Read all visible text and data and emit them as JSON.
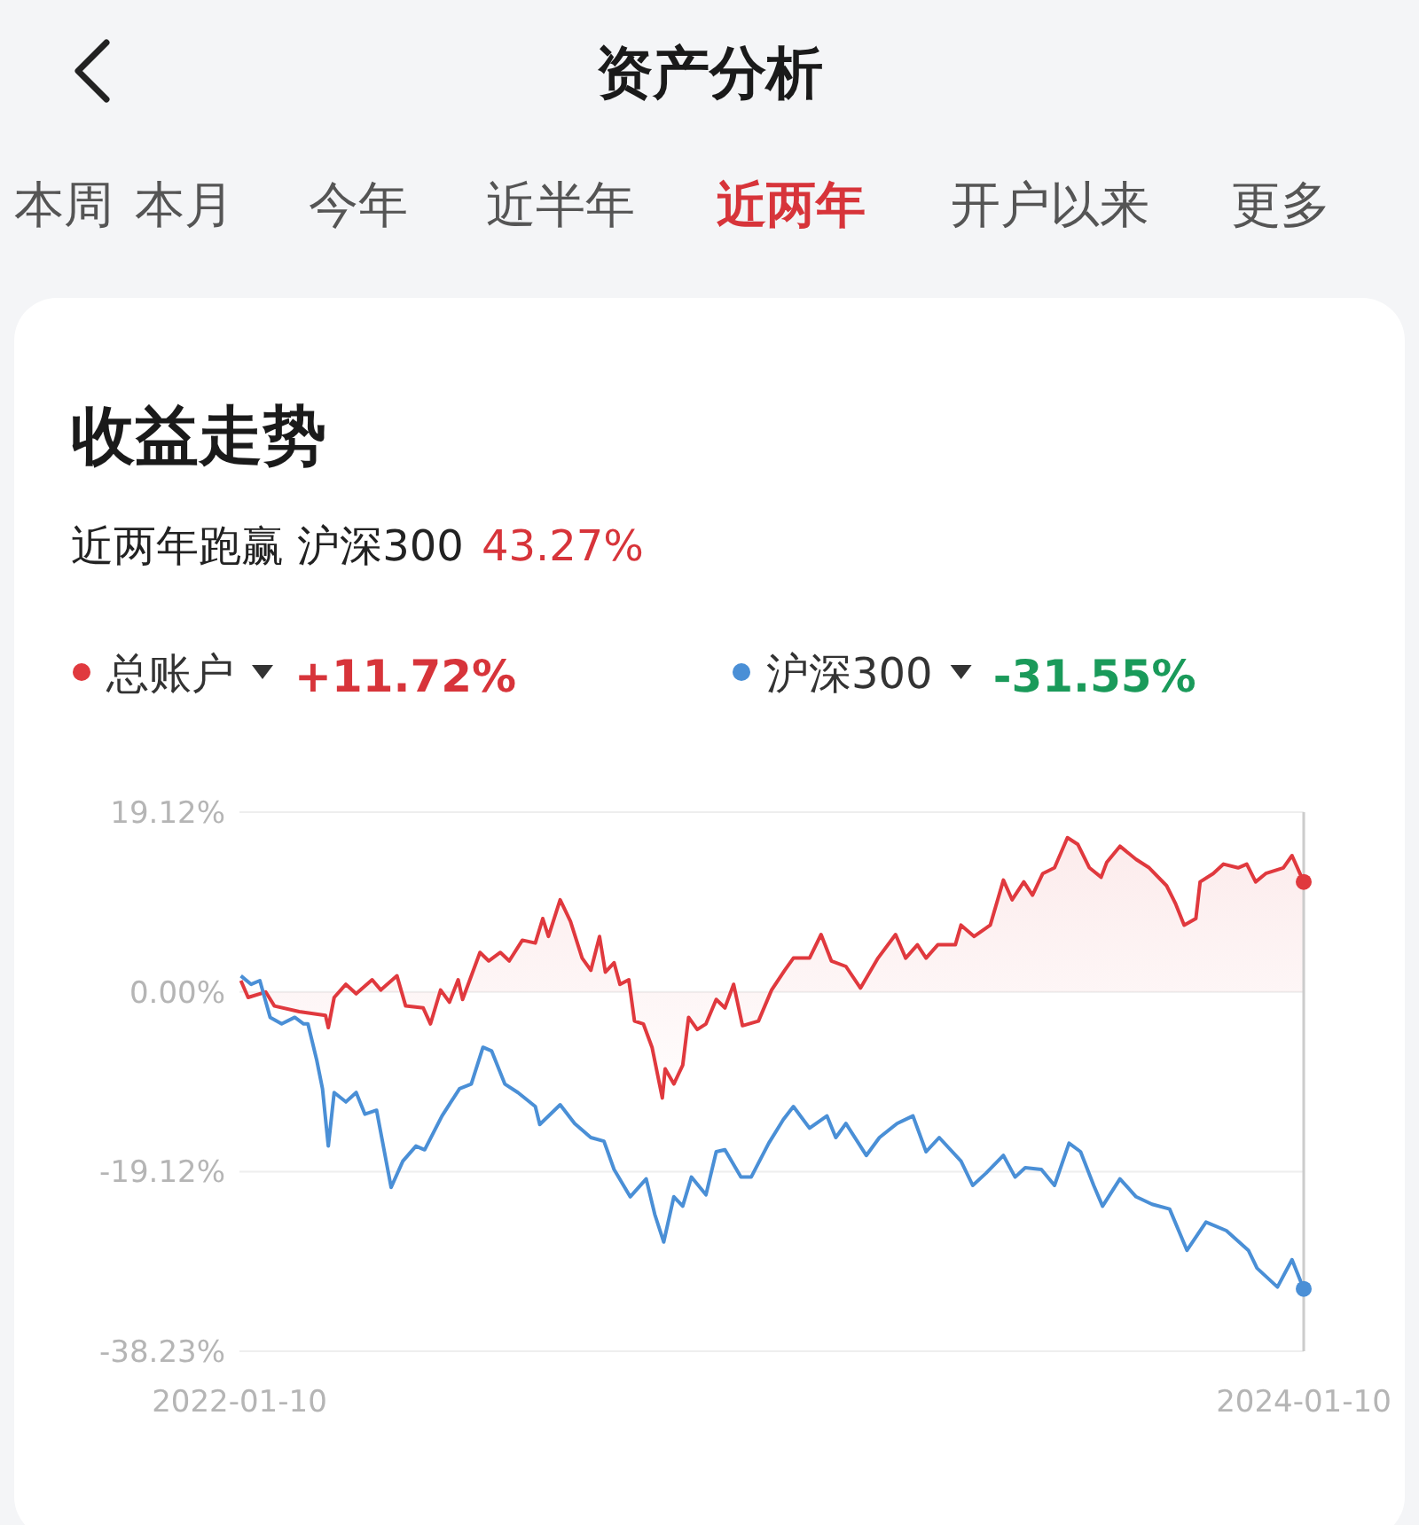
{
  "chart_data": {
    "type": "line",
    "title": "收益走势",
    "subtitle": "近两年跑赢 沪深300 43.27%",
    "annotations": [
      "资产分析",
      "本周",
      "本月",
      "今年",
      "近半年",
      "近两年",
      "开户以来",
      "更多",
      "+11.72%",
      "-31.55%"
    ],
    "xlim": [
      "2022-01-10",
      "2024-01-10"
    ],
    "xticks": [
      {
        "value": "2022-01-10",
        "label": "2022-01-10"
      },
      {
        "value": "2024-01-10",
        "label": "2024-01-10"
      }
    ],
    "ylim": [
      -38.23,
      19.12
    ],
    "yticks": [
      {
        "value": -38.23,
        "label": "-38.23%"
      },
      {
        "value": -19.12,
        "label": "-19.12%"
      },
      {
        "value": 0,
        "label": "0.00%"
      },
      {
        "value": 19.12,
        "label": "19.12%"
      }
    ],
    "grid": "y",
    "legend": "top left",
    "ref_lines": [
      {
        "axis": "x",
        "value": "2024-01-10",
        "label": null,
        "color": "#cccccc"
      }
    ],
    "series": [
      {
        "name": "总账户",
        "type": "area",
        "color": "#e0393e",
        "x": [
          "2022-01-11",
          "2022-01-16",
          "2022-01-28",
          "2022-02-03",
          "2022-02-20",
          "2022-03-10",
          "2022-03-12",
          "2022-03-16",
          "2022-03-24",
          "2022-03-31",
          "2022-04-11",
          "2022-04-17",
          "2022-04-28",
          "2022-05-04",
          "2022-05-16",
          "2022-05-21",
          "2022-05-28",
          "2022-06-03",
          "2022-06-09",
          "2022-06-12",
          "2022-06-24",
          "2022-06-30",
          "2022-07-08",
          "2022-07-14",
          "2022-07-23",
          "2022-08-01",
          "2022-08-06",
          "2022-08-10",
          "2022-08-18",
          "2022-08-25",
          "2022-09-02",
          "2022-09-08",
          "2022-09-14",
          "2022-09-18",
          "2022-09-24",
          "2022-09-28",
          "2022-10-04",
          "2022-10-08",
          "2022-10-14",
          "2022-10-20",
          "2022-10-27",
          "2022-10-29",
          "2022-11-04",
          "2022-11-10",
          "2022-11-14",
          "2022-11-20",
          "2022-11-26",
          "2022-12-03",
          "2022-12-09",
          "2022-12-15",
          "2022-12-21",
          "2023-01-01",
          "2023-01-10",
          "2023-01-19",
          "2023-01-25",
          "2023-02-05",
          "2023-02-13",
          "2023-02-20",
          "2023-03-02",
          "2023-03-12",
          "2023-03-24",
          "2023-04-05",
          "2023-04-12",
          "2023-04-20",
          "2023-04-26",
          "2023-05-04",
          "2023-05-16",
          "2023-05-20",
          "2023-05-29",
          "2023-06-09",
          "2023-06-18",
          "2023-06-24",
          "2023-07-02",
          "2023-07-08",
          "2023-07-15",
          "2023-07-23",
          "2023-08-01",
          "2023-08-08",
          "2023-08-16",
          "2023-08-24",
          "2023-08-28",
          "2023-09-06",
          "2023-09-17",
          "2023-09-26",
          "2023-10-08",
          "2023-10-14",
          "2023-10-20",
          "2023-10-28",
          "2023-10-31",
          "2023-11-09",
          "2023-11-16",
          "2023-11-26",
          "2023-12-02",
          "2023-12-08",
          "2023-12-15",
          "2023-12-27",
          "2024-01-02",
          "2024-01-10"
        ],
        "values": [
          1.2,
          -0.6,
          0,
          -1.5,
          -2.1,
          -2.5,
          -3.8,
          -0.6,
          0.8,
          -0.2,
          1.3,
          0.2,
          1.7,
          -1.5,
          -1.7,
          -3.4,
          0.2,
          -1.1,
          1.3,
          -0.8,
          4.2,
          3.3,
          4.2,
          3.3,
          5.5,
          5.2,
          7.8,
          5.9,
          9.8,
          7.5,
          3.6,
          2.3,
          5.9,
          2.1,
          3.1,
          0.8,
          1.3,
          -3.1,
          -3.4,
          -5.9,
          -11.3,
          -8.2,
          -9.8,
          -7.8,
          -2.7,
          -4.0,
          -3.4,
          -0.8,
          -1.7,
          0.8,
          -3.6,
          -3.1,
          0.2,
          2.3,
          3.6,
          3.6,
          6.1,
          3.3,
          2.7,
          0.4,
          3.6,
          6.1,
          3.6,
          5.0,
          3.6,
          5.0,
          5.0,
          7.1,
          5.9,
          7.1,
          11.9,
          9.8,
          11.7,
          10.3,
          12.6,
          13.2,
          16.4,
          15.7,
          13.2,
          12.2,
          13.8,
          15.5,
          14.1,
          13.2,
          11.3,
          9.4,
          7.1,
          7.8,
          11.7,
          12.6,
          13.6,
          13.2,
          13.6,
          11.7,
          12.6,
          13.2,
          14.5,
          11.7
        ]
      },
      {
        "name": "沪深300",
        "color": "#4a8fd6",
        "x": [
          "2022-01-11",
          "2022-01-18",
          "2022-01-24",
          "2022-01-31",
          "2022-02-08",
          "2022-02-17",
          "2022-02-23",
          "2022-02-26",
          "2022-03-04",
          "2022-03-08",
          "2022-03-12",
          "2022-03-16",
          "2022-03-24",
          "2022-03-31",
          "2022-04-06",
          "2022-04-14",
          "2022-04-24",
          "2022-05-02",
          "2022-05-11",
          "2022-05-17",
          "2022-05-29",
          "2022-06-10",
          "2022-06-18",
          "2022-06-26",
          "2022-07-02",
          "2022-07-11",
          "2022-07-20",
          "2022-08-01",
          "2022-08-04",
          "2022-08-18",
          "2022-08-28",
          "2022-09-08",
          "2022-09-17",
          "2022-09-24",
          "2022-10-05",
          "2022-10-16",
          "2022-10-22",
          "2022-10-28",
          "2022-11-04",
          "2022-11-10",
          "2022-11-16",
          "2022-11-26",
          "2022-12-03",
          "2022-12-09",
          "2022-12-20",
          "2022-12-27",
          "2023-01-08",
          "2023-01-18",
          "2023-01-25",
          "2023-02-05",
          "2023-02-17",
          "2023-02-23",
          "2023-03-02",
          "2023-03-16",
          "2023-03-25",
          "2023-04-06",
          "2023-04-17",
          "2023-04-26",
          "2023-05-05",
          "2023-05-20",
          "2023-05-28",
          "2023-06-06",
          "2023-06-18",
          "2023-06-26",
          "2023-07-03",
          "2023-07-14",
          "2023-07-23",
          "2023-08-02",
          "2023-08-10",
          "2023-08-19",
          "2023-08-25",
          "2023-09-06",
          "2023-09-17",
          "2023-09-28",
          "2023-10-10",
          "2023-10-22",
          "2023-11-04",
          "2023-11-18",
          "2023-12-03",
          "2023-12-09",
          "2023-12-23",
          "2024-01-02",
          "2024-01-10"
        ],
        "values": [
          1.7,
          0.8,
          1.2,
          -2.7,
          -3.4,
          -2.7,
          -3.4,
          -3.4,
          -7.3,
          -10.3,
          -16.4,
          -10.7,
          -11.7,
          -10.7,
          -13.0,
          -12.6,
          -20.8,
          -18.0,
          -16.4,
          -16.8,
          -13.2,
          -10.3,
          -9.8,
          -5.9,
          -6.3,
          -9.8,
          -10.7,
          -12.2,
          -14.1,
          -12.0,
          -14.0,
          -15.5,
          -15.9,
          -18.9,
          -21.8,
          -19.9,
          -23.7,
          -26.6,
          -21.8,
          -22.8,
          -19.7,
          -21.6,
          -17.0,
          -16.8,
          -19.7,
          -19.7,
          -16.1,
          -13.6,
          -12.2,
          -14.5,
          -13.2,
          -15.5,
          -14.0,
          -17.4,
          -15.5,
          -14.0,
          -13.2,
          -17.0,
          -15.5,
          -18.0,
          -20.6,
          -19.3,
          -17.4,
          -19.7,
          -18.7,
          -18.9,
          -20.6,
          -16.1,
          -17.0,
          -20.6,
          -22.8,
          -19.9,
          -21.8,
          -22.6,
          -23.1,
          -27.5,
          -24.5,
          -25.4,
          -27.5,
          -29.4,
          -31.4,
          -28.5,
          -31.6
        ]
      }
    ]
  }
}
